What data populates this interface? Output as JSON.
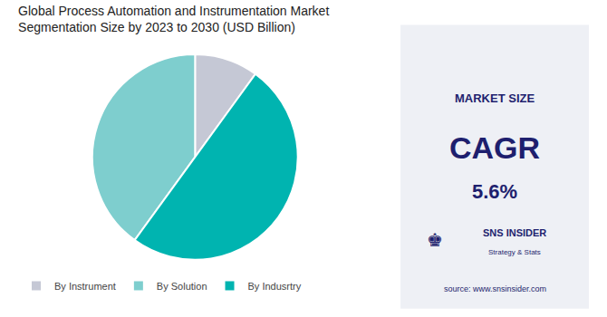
{
  "chart_data": {
    "type": "pie",
    "title": "Global Process Automation and Instrumentation Market",
    "subtitle": "Segmentation Size by 2023 to 2030 (USD Billion)",
    "categories": [
      "By Instrument",
      "By Solution",
      "By Indusrtry"
    ],
    "values": [
      10,
      40,
      50
    ],
    "colors": [
      "#c5c8d5",
      "#7ecece",
      "#00b4b0"
    ],
    "legend": "bottom",
    "data_labels": false,
    "annotations": [
      "MARKET SIZE",
      "CAGR",
      "5.6%",
      "♚",
      "SNS INSIDER",
      "Strategy & Stats",
      "source: www.snsinsider.com"
    ]
  }
}
